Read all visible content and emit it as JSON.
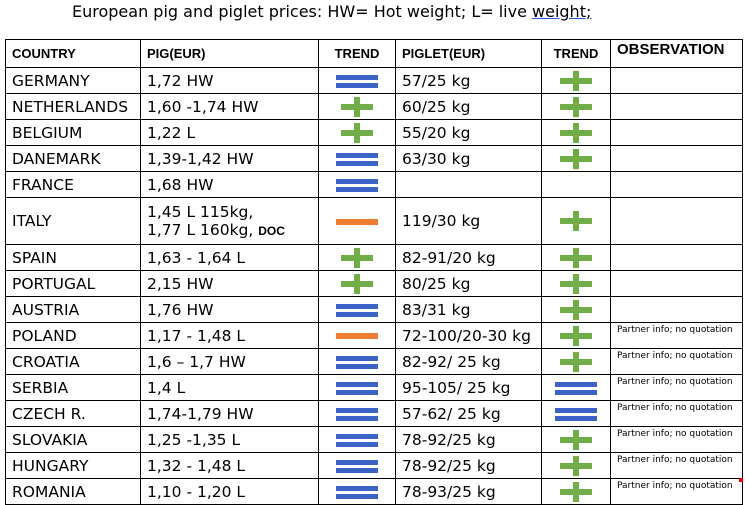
{
  "title": {
    "main": "European pig and piglet prices: HW= Hot weight; L= live ",
    "underlined": "weight;"
  },
  "headers": {
    "country": "COUNTRY",
    "pig": "PIG(EUR)",
    "trend1": "TREND",
    "piglet": "PIGLET(EUR)",
    "trend2": "TREND",
    "observation": "OBSERVATION"
  },
  "trend_icons": {
    "equal": "equal-icon",
    "up": "plus-icon",
    "down": "minus-icon"
  },
  "colors": {
    "equal": "#3b62c4",
    "up": "#70ad47",
    "down": "#ed7d31"
  },
  "rows": [
    {
      "country": "GERMANY",
      "pig": "1,72 HW",
      "pig_trend": "equal",
      "piglet": "57/25 kg",
      "piglet_trend": "up",
      "observation": ""
    },
    {
      "country": "NETHERLANDS",
      "pig": "1,60 -1,74 HW",
      "pig_trend": "up",
      "piglet": "60/25 kg",
      "piglet_trend": "up",
      "observation": ""
    },
    {
      "country": "BELGIUM",
      "pig": "1,22 L",
      "pig_trend": "up",
      "piglet": "55/20 kg",
      "piglet_trend": "up",
      "observation": ""
    },
    {
      "country": "DANEMARK",
      "pig": "1,39-1,42 HW",
      "pig_trend": "equal",
      "piglet": "63/30 kg",
      "piglet_trend": "up",
      "observation": ""
    },
    {
      "country": "FRANCE",
      "pig": "1,68 HW",
      "pig_trend": "equal",
      "piglet": "",
      "piglet_trend": "",
      "observation": ""
    },
    {
      "country": "ITALY",
      "pig": "1,45 L 115kg,",
      "pig2": "1,77 L 160kg, ",
      "pig2_bold": "DOC",
      "pig_trend": "down",
      "piglet": "119/30 kg",
      "piglet_trend": "up",
      "observation": ""
    },
    {
      "country": "SPAIN",
      "pig": "1,63 - 1,64 L",
      "pig_trend": "up",
      "piglet": "82-91/20 kg",
      "piglet_trend": "up",
      "observation": ""
    },
    {
      "country": "PORTUGAL",
      "pig": "2,15 HW",
      "pig_trend": "up",
      "piglet": "80/25 kg",
      "piglet_trend": "up",
      "observation": ""
    },
    {
      "country": "AUSTRIA",
      "pig": "1,76 HW",
      "pig_trend": "equal",
      "piglet": "83/31 kg",
      "piglet_trend": "up",
      "observation": ""
    },
    {
      "country": "POLAND",
      "pig": "1,17 - 1,48 L",
      "pig_trend": "down",
      "piglet": "72-100/20-30 kg",
      "piglet_trend": "up",
      "observation": "Partner info; no quotation"
    },
    {
      "country": "CROATIA",
      "pig": "1,6 – 1,7 HW",
      "pig_trend": "equal",
      "piglet": "82-92/ 25 kg",
      "piglet_trend": "up",
      "observation": "Partner info; no quotation"
    },
    {
      "country": "SERBIA",
      "pig": "1,4 L",
      "pig_trend": "equal",
      "piglet": "95-105/ 25 kg",
      "piglet_trend": "equal",
      "observation": "Partner info; no quotation"
    },
    {
      "country": "CZECH R.",
      "pig": "1,74-1,79 HW",
      "pig_trend": "equal",
      "piglet": "57-62/ 25 kg",
      "piglet_trend": "equal",
      "observation": "Partner info; no quotation"
    },
    {
      "country": "SLOVAKIA",
      "pig": "1,25 -1,35 L",
      "pig_trend": "equal",
      "piglet": "78-92/25 kg",
      "piglet_trend": "up",
      "observation": "Partner info; no quotation"
    },
    {
      "country": "HUNGARY",
      "pig": "1,32 - 1,48 L",
      "pig_trend": "equal",
      "piglet": "78-92/25 kg",
      "piglet_trend": "up",
      "observation": "Partner info; no quotation"
    },
    {
      "country": "ROMANIA",
      "pig": "1,10 - 1,20 L",
      "pig_trend": "equal",
      "piglet": "78-93/25 kg",
      "piglet_trend": "up",
      "observation": "Partner info; no quotation"
    }
  ]
}
